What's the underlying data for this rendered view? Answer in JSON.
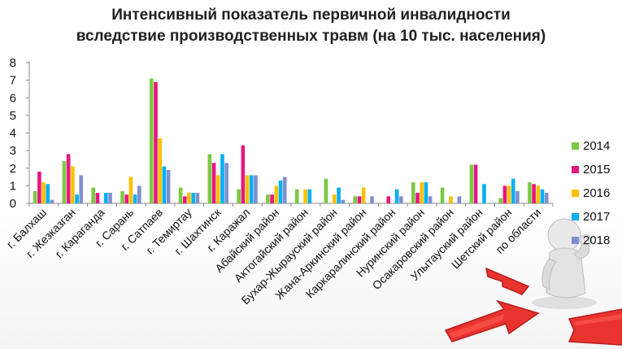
{
  "chart_data": {
    "type": "bar",
    "title_lines": [
      "Интенсивный показатель первичной инвалидности",
      "вследствие производственных травм (на 10 тыс. населения)"
    ],
    "ylim": [
      0,
      8
    ],
    "yticks": [
      0,
      1,
      2,
      3,
      4,
      5,
      6,
      7,
      8
    ],
    "legend_position": "right",
    "categories": [
      "г. Балхаш",
      "г. Жезказган",
      "г. Караганда",
      "г. Сарань",
      "г. Сатпаев",
      "г. Темиртау",
      "г. Шахтинск",
      "г. Каражал",
      "Абайский район",
      "Актогайский район",
      "Бухар-Жырауский район",
      "Жана-Аркинский район",
      "Каркаралинский район",
      "Нуринский район",
      "Осакаровский район",
      "Улытауский район",
      "Шетский район",
      "по области"
    ],
    "series": [
      {
        "name": "2014",
        "color": "#7ac943",
        "values": [
          0.7,
          2.4,
          0.9,
          0.7,
          7.1,
          0.9,
          2.8,
          0.8,
          0.5,
          0.8,
          1.4,
          0.4,
          0.0,
          1.2,
          0.9,
          2.2,
          0.3,
          1.2
        ]
      },
      {
        "name": "2015",
        "color": "#e6177f",
        "values": [
          1.8,
          2.8,
          0.6,
          0.5,
          6.9,
          0.4,
          2.3,
          3.3,
          0.5,
          0.0,
          0.0,
          0.4,
          0.4,
          0.6,
          0.0,
          2.2,
          1.0,
          1.1
        ]
      },
      {
        "name": "2016",
        "color": "#ffc000",
        "values": [
          1.2,
          2.1,
          0.0,
          1.5,
          3.7,
          0.6,
          1.6,
          1.6,
          1.0,
          0.8,
          0.5,
          0.9,
          0.0,
          1.2,
          0.4,
          0.0,
          1.0,
          1.0
        ]
      },
      {
        "name": "2017",
        "color": "#00b0f0",
        "values": [
          1.1,
          0.5,
          0.6,
          0.5,
          2.1,
          0.6,
          2.8,
          1.6,
          1.3,
          0.8,
          0.9,
          0.0,
          0.8,
          1.2,
          0.0,
          1.1,
          1.4,
          0.8
        ]
      },
      {
        "name": "2018",
        "color": "#7f8fd0",
        "values": [
          0.2,
          1.6,
          0.6,
          1.0,
          1.9,
          0.6,
          2.3,
          1.6,
          1.5,
          0.0,
          0.2,
          0.4,
          0.4,
          0.4,
          0.4,
          0.0,
          0.7,
          0.6
        ]
      }
    ]
  },
  "decoration": {
    "icon": "thinking-person-with-arrows-icon"
  }
}
